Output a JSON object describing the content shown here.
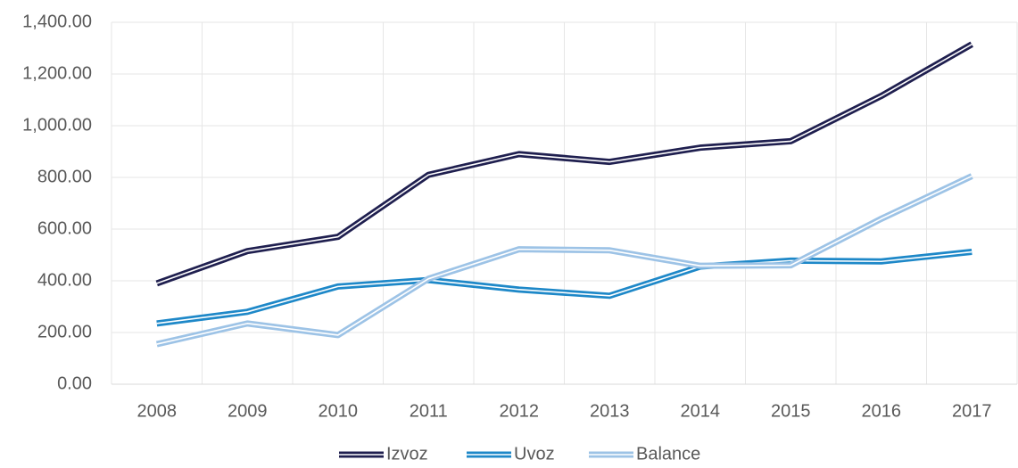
{
  "chart_data": {
    "type": "line",
    "categories": [
      "2008",
      "2009",
      "2010",
      "2011",
      "2012",
      "2013",
      "2014",
      "2015",
      "2016",
      "2017"
    ],
    "series": [
      {
        "name": "Izvoz",
        "color": "#1f1f4f",
        "values": [
          390,
          515,
          570,
          810,
          890,
          860,
          915,
          940,
          1115,
          1315
        ]
      },
      {
        "name": "Uvoz",
        "color": "#1e88c8",
        "values": [
          235,
          280,
          378,
          403,
          366,
          342,
          455,
          478,
          475,
          512
        ]
      },
      {
        "name": "Balance",
        "color": "#9dc3e6",
        "values": [
          155,
          235,
          190,
          408,
          522,
          518,
          458,
          460,
          640,
          805
        ]
      }
    ],
    "ylim": [
      0,
      1400
    ],
    "yticks": [
      {
        "value": 0,
        "label": "0.00"
      },
      {
        "value": 200,
        "label": "200.00"
      },
      {
        "value": 400,
        "label": "400.00"
      },
      {
        "value": 600,
        "label": "600.00"
      },
      {
        "value": 800,
        "label": "800.00"
      },
      {
        "value": 1000,
        "label": "1,000.00"
      },
      {
        "value": 1200,
        "label": "1,200.00"
      },
      {
        "value": 1400,
        "label": "1,400.00"
      }
    ],
    "grid": true,
    "legend": "bottom"
  }
}
